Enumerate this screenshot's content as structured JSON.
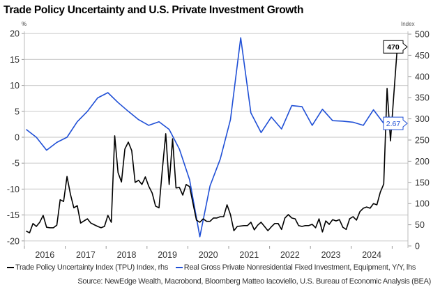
{
  "chart_data": {
    "type": "line",
    "title": "Trade Policy Uncertainty and U.S. Private Investment Growth",
    "left_axis": {
      "unit_label": "%",
      "range": [
        -20,
        20
      ],
      "ticks": [
        20,
        15,
        10,
        5,
        0,
        -5,
        -10,
        -15,
        -20
      ]
    },
    "right_axis": {
      "unit_label": "Index",
      "range": [
        0,
        500
      ],
      "ticks": [
        500,
        450,
        400,
        350,
        300,
        250,
        200,
        150,
        100,
        50,
        0
      ]
    },
    "x_ticks": [
      "2016",
      "2017",
      "2018",
      "2019",
      "2020",
      "2021",
      "2022",
      "2023",
      "2024"
    ],
    "grid": true,
    "legend_placement": "bottom",
    "series": [
      {
        "name": "Trade Policy Uncertainty Index (TPU) Index, rhs",
        "axis": "right",
        "color": "#000000",
        "frequency": "monthly",
        "x": [
          "2016-01",
          "2016-02",
          "2016-03",
          "2016-04",
          "2016-05",
          "2016-06",
          "2016-07",
          "2016-08",
          "2016-09",
          "2016-10",
          "2016-11",
          "2016-12",
          "2017-01",
          "2017-02",
          "2017-03",
          "2017-04",
          "2017-05",
          "2017-06",
          "2017-07",
          "2017-08",
          "2017-09",
          "2017-10",
          "2017-11",
          "2017-12",
          "2018-01",
          "2018-02",
          "2018-03",
          "2018-04",
          "2018-05",
          "2018-06",
          "2018-07",
          "2018-08",
          "2018-09",
          "2018-10",
          "2018-11",
          "2018-12",
          "2019-01",
          "2019-02",
          "2019-03",
          "2019-04",
          "2019-05",
          "2019-06",
          "2019-07",
          "2019-08",
          "2019-09",
          "2019-10",
          "2019-11",
          "2019-12",
          "2020-01",
          "2020-02",
          "2020-03",
          "2020-04",
          "2020-05",
          "2020-06",
          "2020-07",
          "2020-08",
          "2020-09",
          "2020-10",
          "2020-11",
          "2020-12",
          "2021-01",
          "2021-02",
          "2021-03",
          "2021-04",
          "2021-05",
          "2021-06",
          "2021-07",
          "2021-08",
          "2021-09",
          "2021-10",
          "2021-11",
          "2021-12",
          "2022-01",
          "2022-02",
          "2022-03",
          "2022-04",
          "2022-05",
          "2022-06",
          "2022-07",
          "2022-08",
          "2022-09",
          "2022-10",
          "2022-11",
          "2022-12",
          "2023-01",
          "2023-02",
          "2023-03",
          "2023-04",
          "2023-05",
          "2023-06",
          "2023-07",
          "2023-08",
          "2023-09",
          "2023-10",
          "2023-11",
          "2023-12",
          "2024-01",
          "2024-02",
          "2024-03",
          "2024-04",
          "2024-05",
          "2024-06",
          "2024-07",
          "2024-08",
          "2024-09",
          "2024-10",
          "2024-11",
          "2024-12",
          "2025-01",
          "2025-02"
        ],
        "values": [
          35,
          31,
          53,
          46,
          56,
          72,
          44,
          43,
          43,
          49,
          109,
          105,
          164,
          122,
          90,
          95,
          54,
          59,
          64,
          54,
          50,
          46,
          43,
          46,
          72,
          56,
          260,
          173,
          151,
          229,
          245,
          225,
          150,
          155,
          145,
          163,
          141,
          125,
          94,
          90,
          180,
          265,
          145,
          253,
          137,
          138,
          120,
          145,
          140,
          100,
          61,
          56,
          64,
          58,
          58,
          66,
          66,
          69,
          69,
          97,
          74,
          36,
          46,
          47,
          48,
          48,
          56,
          38,
          49,
          56,
          46,
          36,
          45,
          53,
          53,
          39,
          66,
          74,
          66,
          64,
          48,
          46,
          48,
          48,
          51,
          43,
          64,
          33,
          59,
          51,
          62,
          59,
          62,
          44,
          39,
          64,
          69,
          61,
          81,
          89,
          92,
          89,
          100,
          97,
          127,
          146,
          372,
          248,
          360,
          470
        ],
        "last_value_label": "470"
      },
      {
        "name": "Real Gross Private Nonresidential Fixed Investment, Equipment, Y/Y, lhs",
        "axis": "left",
        "color": "#1f4fd6",
        "frequency": "quarterly",
        "x": [
          "2016Q1",
          "2016Q2",
          "2016Q3",
          "2016Q4",
          "2017Q1",
          "2017Q2",
          "2017Q3",
          "2017Q4",
          "2018Q1",
          "2018Q2",
          "2018Q3",
          "2018Q4",
          "2019Q1",
          "2019Q2",
          "2019Q3",
          "2019Q4",
          "2020Q1",
          "2020Q2",
          "2020Q3",
          "2020Q4",
          "2021Q1",
          "2021Q2",
          "2021Q3",
          "2021Q4",
          "2022Q1",
          "2022Q2",
          "2022Q3",
          "2022Q4",
          "2023Q1",
          "2023Q2",
          "2023Q3",
          "2023Q4",
          "2024Q1",
          "2024Q2",
          "2024Q3",
          "2024Q4"
        ],
        "values": [
          1.5,
          0.0,
          -2.5,
          -1.0,
          0.0,
          3.0,
          5.0,
          7.6,
          8.6,
          6.7,
          5.0,
          3.4,
          2.3,
          3.0,
          1.5,
          -2.3,
          -8.2,
          -19.2,
          -9.4,
          -4.2,
          3.4,
          19.2,
          4.7,
          0.9,
          3.9,
          1.6,
          6.1,
          5.9,
          2.3,
          5.4,
          3.2,
          3.1,
          2.9,
          2.3,
          5.3,
          2.67
        ],
        "last_value_label": "2.67"
      }
    ]
  },
  "legend": {
    "tpu": "Trade Policy Uncertainty Index (TPU) Index, rhs",
    "investment": "Real Gross Private Nonresidential Fixed Investment, Equipment, Y/Y, lhs"
  },
  "source": "Source: NewEdge Wealth, Macrobond, Bloomberg Matteo Iacoviello, U.S. Bureau of Economic Analysis (BEA)"
}
